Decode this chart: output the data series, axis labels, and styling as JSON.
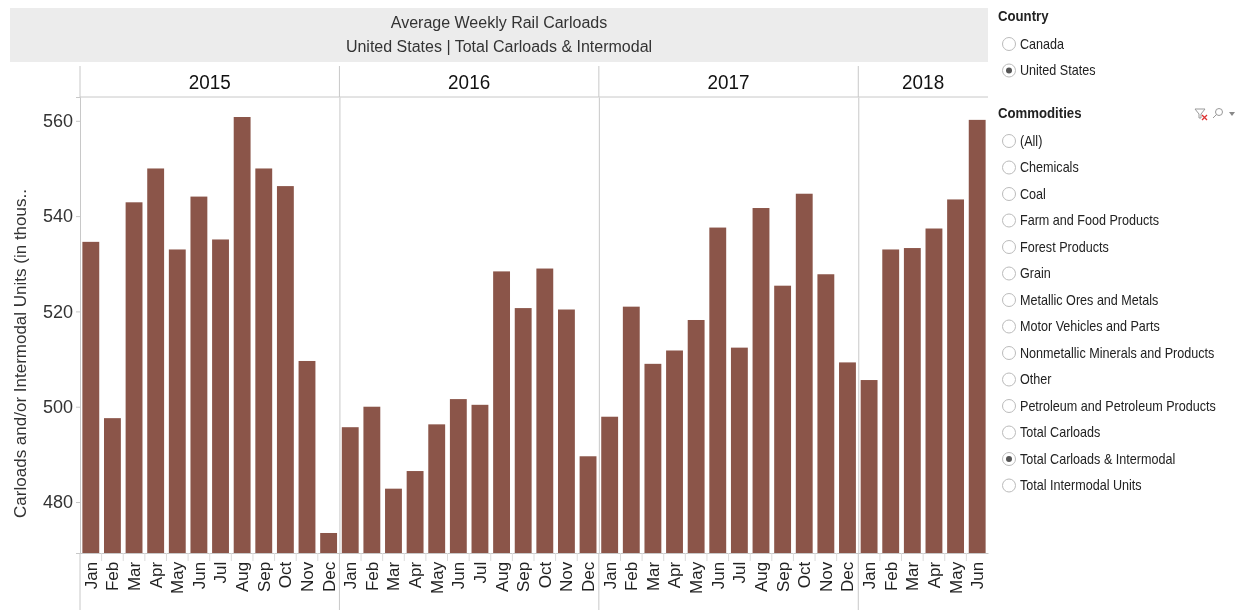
{
  "chart_data": [
    {
      "type": "other",
      "title": "Average Weekly Rail Carloads",
      "subtitle": "United States | Total Carloads & Intermodal"
    },
    {
      "type": "bar",
      "ylabel": "Carloads and/or Intermodal Units (in thous..",
      "xlabel": "2015",
      "categories": [
        "Jan",
        "Feb",
        "Mar",
        "Apr",
        "May",
        "Jun",
        "Jul",
        "Aug",
        "Sep",
        "Oct",
        "Nov",
        "Dec"
      ],
      "values": [
        534.6,
        497.6,
        542.9,
        550.0,
        533.0,
        544.1,
        535.1,
        560.8,
        550.0,
        546.3,
        509.6,
        473.5
      ],
      "color": "#8b5549",
      "ylim": [
        469.3,
        565
      ],
      "yticks": [
        480,
        500,
        520,
        540,
        560
      ]
    },
    {
      "type": "bar",
      "xlabel": "2016",
      "categories": [
        "Jan",
        "Feb",
        "Mar",
        "Apr",
        "May",
        "Jun",
        "Jul",
        "Aug",
        "Sep",
        "Oct",
        "Nov",
        "Dec"
      ],
      "values": [
        495.7,
        500.0,
        482.8,
        486.5,
        496.3,
        501.6,
        500.4,
        528.4,
        520.7,
        529.0,
        520.4,
        489.6
      ],
      "color": "#8b5549",
      "ylim": [
        469.3,
        565
      ],
      "yticks": [
        480,
        500,
        520,
        540,
        560
      ],
      "tick_labels": "x"
    },
    {
      "type": "bar",
      "xlabel": "2017",
      "categories": [
        "Jan",
        "Feb",
        "Mar",
        "Apr",
        "May",
        "Jun",
        "Jul",
        "Aug",
        "Sep",
        "Oct",
        "Nov",
        "Dec"
      ],
      "values": [
        497.9,
        521.0,
        509.0,
        511.8,
        518.2,
        537.6,
        512.4,
        541.7,
        525.4,
        544.7,
        527.8,
        509.3
      ],
      "color": "#8b5549",
      "ylim": [
        469.3,
        565
      ],
      "yticks": [
        480,
        500,
        520,
        540,
        560
      ],
      "tick_labels": "x"
    },
    {
      "type": "bar",
      "xlabel": "2018",
      "categories": [
        "Jan",
        "Feb",
        "Mar",
        "Apr",
        "May",
        "Jun"
      ],
      "values": [
        505.6,
        533.0,
        533.3,
        537.4,
        543.5,
        560.2
      ],
      "color": "#8b5549",
      "ylim": [
        469.3,
        565
      ],
      "yticks": [
        480,
        500,
        520,
        540,
        560
      ],
      "tick_labels": "x"
    },
    {
      "type": "other",
      "title": "Country",
      "annotations": [
        "Canada",
        "United States"
      ]
    },
    {
      "type": "other",
      "title": "Commodities",
      "annotations": [
        "(All)",
        "Chemicals",
        "Coal",
        "Farm and Food Products",
        "Forest Products",
        "Grain",
        "Metallic Ores and Metals",
        "Motor Vehicles and Parts",
        "Nonmetallic Minerals and Products",
        "Other",
        "Petroleum and Petroleum Products",
        "Total Carloads",
        "Total Carloads & Intermodal",
        "Total Intermodal Units"
      ]
    }
  ]
}
